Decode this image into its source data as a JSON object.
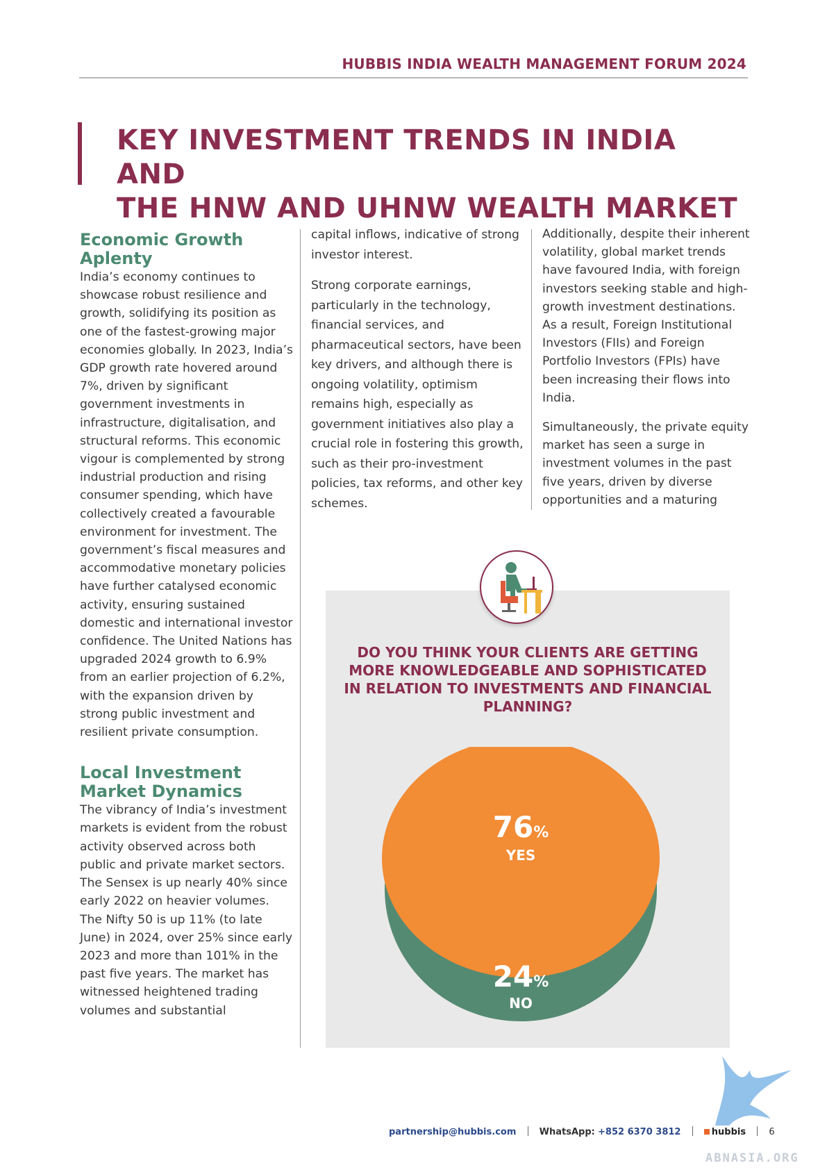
{
  "header": {
    "title": "HUBBIS INDIA WEALTH MANAGEMENT FORUM 2024"
  },
  "main_title": {
    "line1": "KEY INVESTMENT TRENDS IN INDIA AND",
    "line2": "THE HNW AND UHNW WEALTH MARKET"
  },
  "column1": {
    "heading1": "Economic Growth Aplenty",
    "para1": "India’s economy continues to showcase robust resilience and growth, solidifying its position as one of the fastest-growing major economies globally. In 2023, India’s GDP growth rate hovered around 7%, driven by significant government investments in infrastructure, digitalisation, and structural reforms. This economic vigour is complemented by strong industrial production and rising consumer spending, which have collectively created a favourable environment for investment. The government’s fiscal measures and accommodative monetary policies have further catalysed economic activity, ensuring sustained domestic and international investor confidence. The United Nations has upgraded 2024 growth to 6.9% from an earlier projection of 6.2%, with the expansion driven by strong public investment and resilient private consumption.",
    "heading2": "Local Investment Market Dynamics",
    "para2": "The vibrancy of India’s investment markets is evident from the robust activity observed across both public and private market sectors. The Sensex is up nearly 40% since early 2022 on heavier volumes. The Nifty 50 is up 11% (to late June) in 2024, over 25% since early 2023 and more than 101% in the past five years. The market has witnessed heightened trading volumes and substantial"
  },
  "column2": {
    "para1": "capital inflows, indicative of strong investor interest.",
    "para2": "Strong corporate earnings, particularly in the technology, financial services, and pharmaceutical sectors, have been key drivers, and although there is ongoing volatility, optimism remains high, especially as government initiatives also play a crucial role in fostering this growth, such as their pro-investment policies, tax reforms, and other key schemes."
  },
  "column3": {
    "para1": "Additionally, despite their inherent volatility, global market trends have favoured India, with foreign investors seeking stable and high-growth investment destinations. As a result, Foreign Institutional Investors (FIIs) and Foreign Portfolio Investors (FPIs) have been increasing their flows into India.",
    "para2": "Simultaneously, the private equity market has seen a surge in investment volumes in the past five years, driven by diverse opportunities and a maturing"
  },
  "poll": {
    "icon": "person-at-desk-icon",
    "question": "DO YOU THINK YOUR CLIENTS ARE GETTING MORE KNOWLEDGEABLE AND SOPHISTICATED IN RELATION TO INVESTMENTS AND FINANCIAL PLANNING?"
  },
  "chart_data": {
    "type": "pie",
    "categories": [
      "YES",
      "NO"
    ],
    "values": [
      76,
      24
    ],
    "unit": "%",
    "colors": [
      "#f28c35",
      "#558a72"
    ]
  },
  "footer": {
    "email": "partnership@hubbis.com",
    "whatsapp_label": "WhatsApp:",
    "whatsapp_number": "+852 6370 3812",
    "brand": "hubbis",
    "page_number": "6"
  },
  "watermark": {
    "text": "ABNASIA.ORG"
  }
}
